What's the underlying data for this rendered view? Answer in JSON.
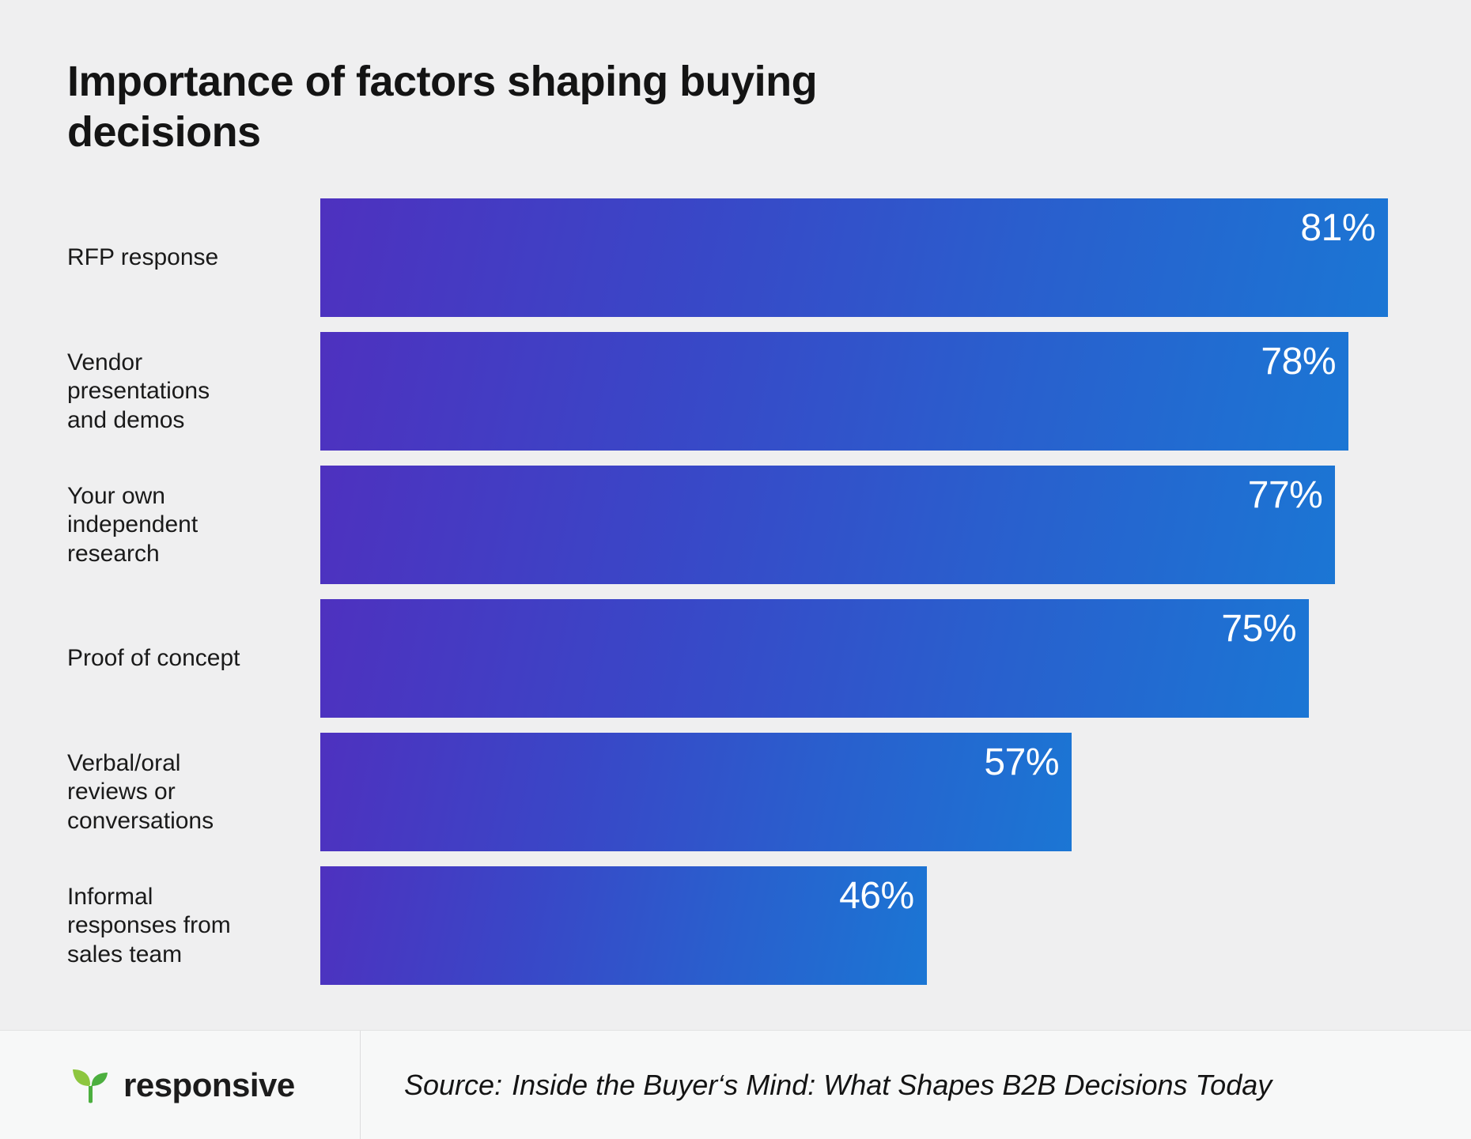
{
  "title": "Importance of factors shaping buying decisions",
  "chart_data": {
    "type": "bar",
    "orientation": "horizontal",
    "title": "Importance of factors shaping buying decisions",
    "categories": [
      "RFP response",
      "Vendor presentations and demos",
      "Your own independent research",
      "Proof of concept",
      "Verbal/oral reviews or conversations",
      "Informal responses from sales team"
    ],
    "values": [
      81,
      78,
      77,
      75,
      57,
      46
    ],
    "value_suffix": "%",
    "axis_max": 81,
    "grid": false,
    "legend": false,
    "bar_gradient": [
      "#4e31bf",
      "#1b76d4"
    ],
    "value_label_color": "#ffffff"
  },
  "footer": {
    "brand": "responsive",
    "brand_icon": "sprout-leaf-icon",
    "brand_green_light": "#8dc63f",
    "brand_green_dark": "#4caf3f",
    "source_prefix": "Source:",
    "source_title": "Inside the Buyer‘s Mind: What Shapes B2B Decisions Today"
  }
}
